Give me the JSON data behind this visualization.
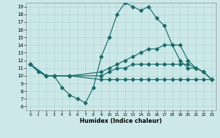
{
  "xlabel": "Humidex (Indice chaleur)",
  "background_color": "#cce8e8",
  "line_color": "#1a6b6b",
  "xlim": [
    -0.5,
    23.5
  ],
  "ylim": [
    5.5,
    19.5
  ],
  "xticks": [
    0,
    1,
    2,
    3,
    4,
    5,
    6,
    7,
    8,
    9,
    10,
    11,
    12,
    13,
    14,
    15,
    16,
    17,
    18,
    19,
    20,
    21,
    22,
    23
  ],
  "yticks": [
    6,
    7,
    8,
    9,
    10,
    11,
    12,
    13,
    14,
    15,
    16,
    17,
    18,
    19
  ],
  "line1_x": [
    0,
    1,
    2,
    3,
    4,
    5,
    6,
    7,
    8,
    9,
    10,
    11,
    12,
    13,
    14,
    15,
    16,
    17,
    18,
    19,
    20,
    21,
    22,
    23
  ],
  "line1_y": [
    11.5,
    10.5,
    10.0,
    10.0,
    8.5,
    7.5,
    7.0,
    6.5,
    8.5,
    12.5,
    15.0,
    18.0,
    19.5,
    19.0,
    18.5,
    19.0,
    17.5,
    16.5,
    14.0,
    12.0,
    11.0,
    11.0,
    10.5,
    9.5
  ],
  "line2_x": [
    0,
    2,
    3,
    5,
    9,
    10,
    11,
    12,
    13,
    14,
    15,
    16,
    17,
    18,
    19,
    20,
    21,
    22,
    23
  ],
  "line2_y": [
    11.5,
    10.0,
    10.0,
    10.0,
    10.5,
    11.0,
    11.5,
    12.0,
    12.5,
    13.0,
    13.5,
    13.5,
    14.0,
    14.0,
    14.0,
    12.0,
    11.0,
    10.5,
    9.5
  ],
  "line3_x": [
    0,
    2,
    3,
    5,
    9,
    10,
    11,
    12,
    13,
    14,
    15,
    16,
    17,
    18,
    19,
    20,
    21,
    22,
    23
  ],
  "line3_y": [
    11.5,
    10.0,
    10.0,
    10.0,
    10.0,
    10.5,
    11.0,
    11.0,
    11.5,
    11.5,
    11.5,
    11.5,
    11.5,
    11.5,
    11.5,
    11.5,
    11.0,
    10.5,
    9.5
  ],
  "line4_x": [
    0,
    2,
    3,
    5,
    9,
    10,
    11,
    12,
    13,
    14,
    15,
    16,
    17,
    18,
    19,
    20,
    21,
    22,
    23
  ],
  "line4_y": [
    11.5,
    10.0,
    10.0,
    10.0,
    9.5,
    9.5,
    9.5,
    9.5,
    9.5,
    9.5,
    9.5,
    9.5,
    9.5,
    9.5,
    9.5,
    9.5,
    9.5,
    9.5,
    9.5
  ],
  "grid_color": "#b0d4d4",
  "spine_color": "#888888",
  "xlabel_fontsize": 6,
  "tick_fontsize": 5,
  "linewidth": 0.9,
  "markersize": 2.5
}
